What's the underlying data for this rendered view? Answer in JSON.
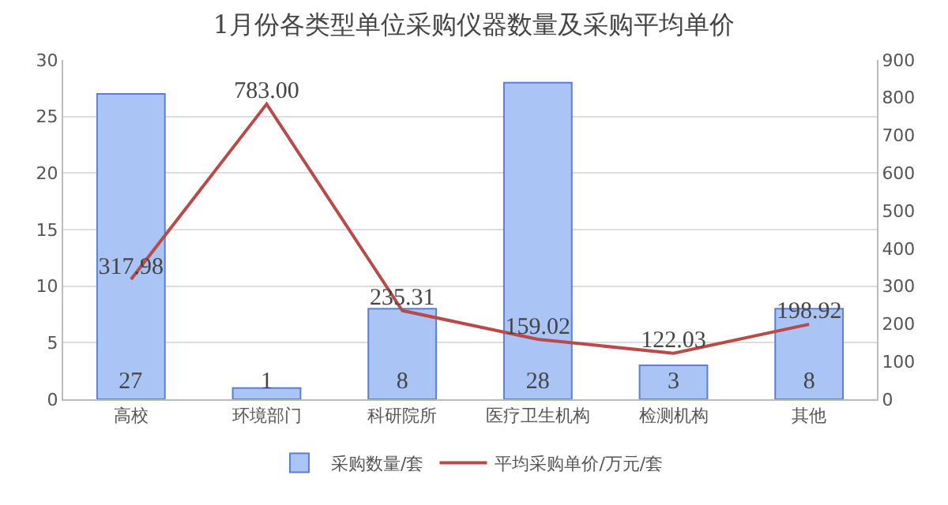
{
  "chart_data": {
    "type": "bar",
    "title": "1月份各类型单位采购仪器数量及采购平均单价",
    "categories": [
      "高校",
      "环境部门",
      "科研院所",
      "医疗卫生机构",
      "检测机构",
      "其他"
    ],
    "series": [
      {
        "name": "采购数量/套",
        "color": "#a9c4f5",
        "values": [
          27,
          1,
          8,
          28,
          3,
          8
        ]
      },
      {
        "name": "平均采购单价/万元/套",
        "type": "line",
        "axis": "y2",
        "color": "#b94a48",
        "values": [
          317.98,
          783.0,
          235.31,
          159.02,
          122.03,
          198.92
        ],
        "value_labels": [
          "317.98",
          "783.00",
          "235.31",
          "159.02",
          "122.03",
          "198.92"
        ]
      }
    ],
    "ylim": [
      0,
      30
    ],
    "yticks": [
      0,
      5,
      10,
      15,
      20,
      25,
      30
    ],
    "y2lim": [
      0,
      900
    ],
    "y2ticks": [
      0,
      100,
      200,
      300,
      400,
      500,
      600,
      700,
      800,
      900
    ],
    "data_labels": true,
    "grid": "y",
    "legend": "bottom",
    "marker": "none",
    "line_style": "solid"
  }
}
